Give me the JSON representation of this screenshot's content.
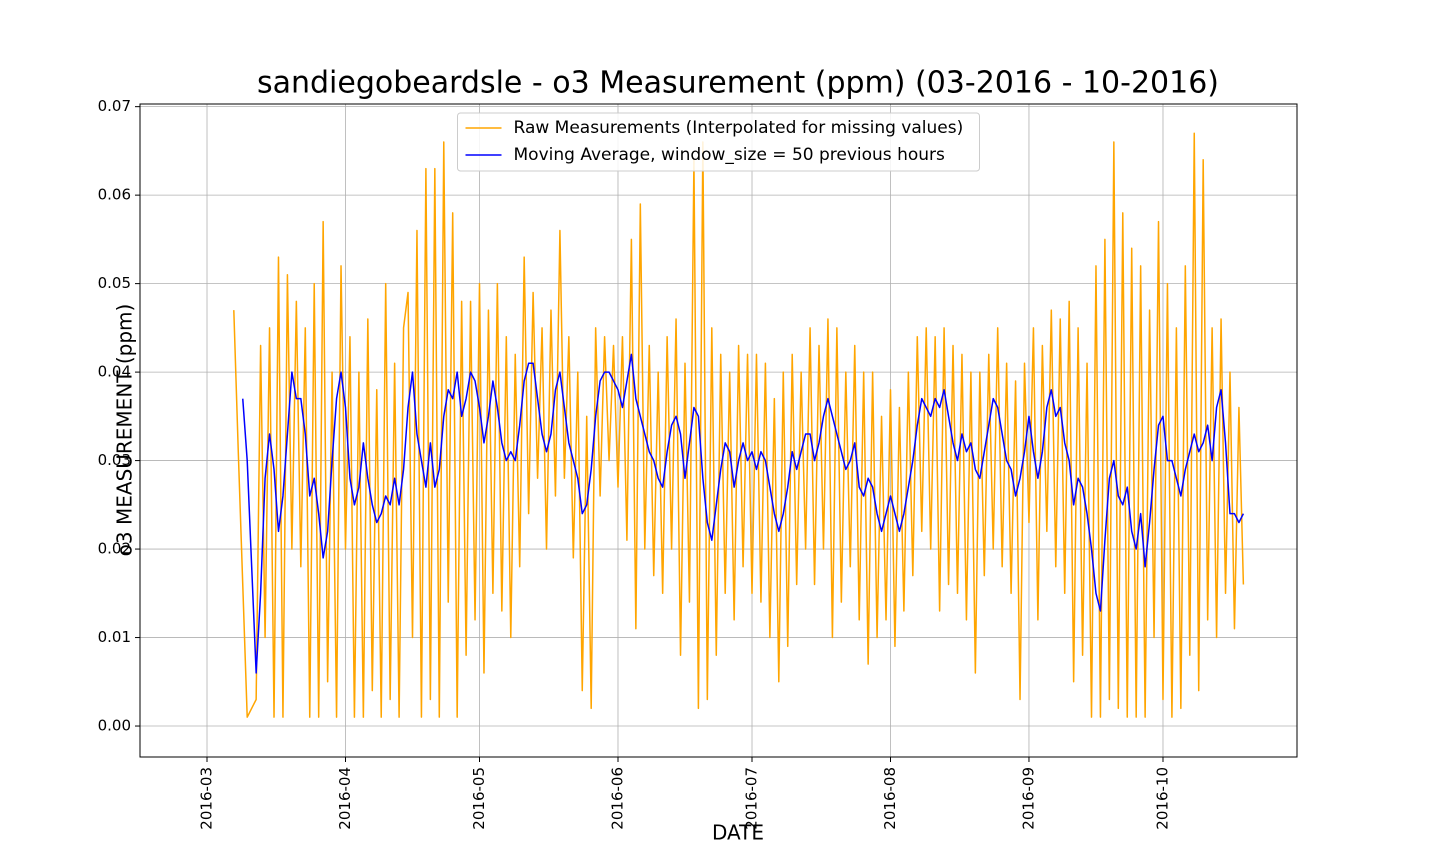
{
  "chart_data": {
    "type": "line",
    "title": "sandiegobeardsle - o3 Measurement (ppm) (03-2016 - 10-2016)",
    "xlabel": "DATE",
    "ylabel": "o3 MEASUREMENT (ppm)",
    "grid": true,
    "legend": "upper center",
    "xlim": [
      "2016-02-15",
      "2016-10-31"
    ],
    "xticks": [
      {
        "value": "2016-03-01",
        "label": "2016-03"
      },
      {
        "value": "2016-04-01",
        "label": "2016-04"
      },
      {
        "value": "2016-05-01",
        "label": "2016-05"
      },
      {
        "value": "2016-06-01",
        "label": "2016-06"
      },
      {
        "value": "2016-07-01",
        "label": "2016-07"
      },
      {
        "value": "2016-08-01",
        "label": "2016-08"
      },
      {
        "value": "2016-09-01",
        "label": "2016-09"
      },
      {
        "value": "2016-10-01",
        "label": "2016-10"
      }
    ],
    "ylim": [
      -0.0035,
      0.0703
    ],
    "yticks": [
      {
        "value": 0,
        "label": "0.00"
      },
      {
        "value": 0.01,
        "label": "0.01"
      },
      {
        "value": 0.02,
        "label": "0.02"
      },
      {
        "value": 0.03,
        "label": "0.03"
      },
      {
        "value": 0.04,
        "label": "0.04"
      },
      {
        "value": 0.05,
        "label": "0.05"
      },
      {
        "value": 0.06,
        "label": "0.06"
      },
      {
        "value": 0.07,
        "label": "0.07"
      }
    ],
    "x": [
      "2016-03-07",
      "2016-03-08",
      "2016-03-09",
      "2016-03-10",
      "2016-03-11",
      "2016-03-12",
      "2016-03-13",
      "2016-03-14",
      "2016-03-15",
      "2016-03-16",
      "2016-03-17",
      "2016-03-18",
      "2016-03-19",
      "2016-03-20",
      "2016-03-21",
      "2016-03-22",
      "2016-03-23",
      "2016-03-24",
      "2016-03-25",
      "2016-03-26",
      "2016-03-27",
      "2016-03-28",
      "2016-03-29",
      "2016-03-30",
      "2016-03-31",
      "2016-04-01",
      "2016-04-02",
      "2016-04-03",
      "2016-04-04",
      "2016-04-05",
      "2016-04-06",
      "2016-04-07",
      "2016-04-08",
      "2016-04-09",
      "2016-04-10",
      "2016-04-11",
      "2016-04-12",
      "2016-04-13",
      "2016-04-14",
      "2016-04-15",
      "2016-04-16",
      "2016-04-17",
      "2016-04-18",
      "2016-04-19",
      "2016-04-20",
      "2016-04-21",
      "2016-04-22",
      "2016-04-23",
      "2016-04-24",
      "2016-04-25",
      "2016-04-26",
      "2016-04-27",
      "2016-04-28",
      "2016-04-29",
      "2016-04-30",
      "2016-05-01",
      "2016-05-02",
      "2016-05-03",
      "2016-05-04",
      "2016-05-05",
      "2016-05-06",
      "2016-05-07",
      "2016-05-08",
      "2016-05-09",
      "2016-05-10",
      "2016-05-11",
      "2016-05-12",
      "2016-05-13",
      "2016-05-14",
      "2016-05-15",
      "2016-05-16",
      "2016-05-17",
      "2016-05-18",
      "2016-05-19",
      "2016-05-20",
      "2016-05-21",
      "2016-05-22",
      "2016-05-23",
      "2016-05-24",
      "2016-05-25",
      "2016-05-26",
      "2016-05-27",
      "2016-05-28",
      "2016-05-29",
      "2016-05-30",
      "2016-05-31",
      "2016-06-01",
      "2016-06-02",
      "2016-06-03",
      "2016-06-04",
      "2016-06-05",
      "2016-06-06",
      "2016-06-07",
      "2016-06-08",
      "2016-06-09",
      "2016-06-10",
      "2016-06-11",
      "2016-06-12",
      "2016-06-13",
      "2016-06-14",
      "2016-06-15",
      "2016-06-16",
      "2016-06-17",
      "2016-06-18",
      "2016-06-19",
      "2016-06-20",
      "2016-06-21",
      "2016-06-22",
      "2016-06-23",
      "2016-06-24",
      "2016-06-25",
      "2016-06-26",
      "2016-06-27",
      "2016-06-28",
      "2016-06-29",
      "2016-06-30",
      "2016-07-01",
      "2016-07-02",
      "2016-07-03",
      "2016-07-04",
      "2016-07-05",
      "2016-07-06",
      "2016-07-07",
      "2016-07-08",
      "2016-07-09",
      "2016-07-10",
      "2016-07-11",
      "2016-07-12",
      "2016-07-13",
      "2016-07-14",
      "2016-07-15",
      "2016-07-16",
      "2016-07-17",
      "2016-07-18",
      "2016-07-19",
      "2016-07-20",
      "2016-07-21",
      "2016-07-22",
      "2016-07-23",
      "2016-07-24",
      "2016-07-25",
      "2016-07-26",
      "2016-07-27",
      "2016-07-28",
      "2016-07-29",
      "2016-07-30",
      "2016-07-31",
      "2016-08-01",
      "2016-08-02",
      "2016-08-03",
      "2016-08-04",
      "2016-08-05",
      "2016-08-06",
      "2016-08-07",
      "2016-08-08",
      "2016-08-09",
      "2016-08-10",
      "2016-08-11",
      "2016-08-12",
      "2016-08-13",
      "2016-08-14",
      "2016-08-15",
      "2016-08-16",
      "2016-08-17",
      "2016-08-18",
      "2016-08-19",
      "2016-08-20",
      "2016-08-21",
      "2016-08-22",
      "2016-08-23",
      "2016-08-24",
      "2016-08-25",
      "2016-08-26",
      "2016-08-27",
      "2016-08-28",
      "2016-08-29",
      "2016-08-30",
      "2016-08-31",
      "2016-09-01",
      "2016-09-02",
      "2016-09-03",
      "2016-09-04",
      "2016-09-05",
      "2016-09-06",
      "2016-09-07",
      "2016-09-08",
      "2016-09-09",
      "2016-09-10",
      "2016-09-11",
      "2016-09-12",
      "2016-09-13",
      "2016-09-14",
      "2016-09-15",
      "2016-09-16",
      "2016-09-17",
      "2016-09-18",
      "2016-09-19",
      "2016-09-20",
      "2016-09-21",
      "2016-09-22",
      "2016-09-23",
      "2016-09-24",
      "2016-09-25",
      "2016-09-26",
      "2016-09-27",
      "2016-09-28",
      "2016-09-29",
      "2016-09-30",
      "2016-10-01",
      "2016-10-02",
      "2016-10-03",
      "2016-10-04",
      "2016-10-05",
      "2016-10-06",
      "2016-10-07",
      "2016-10-08",
      "2016-10-09",
      "2016-10-10",
      "2016-10-11",
      "2016-10-12",
      "2016-10-13",
      "2016-10-14",
      "2016-10-15",
      "2016-10-16",
      "2016-10-17",
      "2016-10-18",
      "2016-10-19"
    ],
    "series": [
      {
        "name": "Raw Measurements (Interpolated for missing values)",
        "color": "#ffa500",
        "values": [
          0.047,
          0.031,
          0.016,
          0.001,
          0.002,
          0.003,
          0.043,
          0.01,
          0.045,
          0.001,
          0.053,
          0.001,
          0.051,
          0.02,
          0.048,
          0.018,
          0.045,
          0.001,
          0.05,
          0.001,
          0.057,
          0.005,
          0.04,
          0.001,
          0.052,
          0.02,
          0.044,
          0.001,
          0.04,
          0.001,
          0.046,
          0.004,
          0.038,
          0.001,
          0.05,
          0.003,
          0.041,
          0.001,
          0.045,
          0.049,
          0.01,
          0.056,
          0.001,
          0.063,
          0.003,
          0.063,
          0.001,
          0.066,
          0.014,
          0.058,
          0.001,
          0.048,
          0.008,
          0.048,
          0.012,
          0.05,
          0.006,
          0.047,
          0.015,
          0.05,
          0.013,
          0.044,
          0.01,
          0.042,
          0.018,
          0.053,
          0.024,
          0.049,
          0.028,
          0.045,
          0.02,
          0.047,
          0.026,
          0.056,
          0.028,
          0.044,
          0.019,
          0.04,
          0.004,
          0.035,
          0.002,
          0.045,
          0.026,
          0.044,
          0.03,
          0.043,
          0.027,
          0.044,
          0.021,
          0.055,
          0.011,
          0.059,
          0.02,
          0.043,
          0.017,
          0.04,
          0.015,
          0.044,
          0.02,
          0.046,
          0.008,
          0.041,
          0.014,
          0.064,
          0.002,
          0.066,
          0.003,
          0.045,
          0.008,
          0.042,
          0.015,
          0.04,
          0.012,
          0.043,
          0.018,
          0.042,
          0.015,
          0.042,
          0.014,
          0.041,
          0.01,
          0.037,
          0.005,
          0.04,
          0.009,
          0.042,
          0.016,
          0.04,
          0.02,
          0.045,
          0.016,
          0.043,
          0.02,
          0.046,
          0.01,
          0.045,
          0.014,
          0.04,
          0.018,
          0.043,
          0.012,
          0.04,
          0.007,
          0.04,
          0.01,
          0.035,
          0.012,
          0.038,
          0.009,
          0.036,
          0.013,
          0.04,
          0.017,
          0.044,
          0.022,
          0.045,
          0.02,
          0.044,
          0.013,
          0.045,
          0.016,
          0.043,
          0.015,
          0.042,
          0.012,
          0.04,
          0.006,
          0.04,
          0.017,
          0.042,
          0.02,
          0.045,
          0.018,
          0.041,
          0.015,
          0.039,
          0.003,
          0.041,
          0.023,
          0.045,
          0.012,
          0.043,
          0.022,
          0.047,
          0.018,
          0.046,
          0.015,
          0.048,
          0.005,
          0.045,
          0.008,
          0.041,
          0.001,
          0.052,
          0.001,
          0.055,
          0.003,
          0.066,
          0.002,
          0.058,
          0.001,
          0.054,
          0.001,
          0.052,
          0.001,
          0.047,
          0.01,
          0.057,
          0.003,
          0.05,
          0.001,
          0.045,
          0.002,
          0.052,
          0.008,
          0.067,
          0.004,
          0.064,
          0.012,
          0.045,
          0.01,
          0.046,
          0.015,
          0.04,
          0.011,
          0.036,
          0.016
        ]
      },
      {
        "name": "Moving Average, window_size = 50 previous hours",
        "color": "#0000ff",
        "values": [
          null,
          null,
          0.037,
          0.03,
          0.018,
          0.006,
          0.015,
          0.028,
          0.033,
          0.029,
          0.022,
          0.026,
          0.033,
          0.04,
          0.037,
          0.037,
          0.033,
          0.026,
          0.028,
          0.024,
          0.019,
          0.022,
          0.03,
          0.037,
          0.04,
          0.036,
          0.028,
          0.025,
          0.027,
          0.032,
          0.028,
          0.025,
          0.023,
          0.024,
          0.026,
          0.025,
          0.028,
          0.025,
          0.029,
          0.036,
          0.04,
          0.033,
          0.03,
          0.027,
          0.032,
          0.027,
          0.029,
          0.035,
          0.038,
          0.037,
          0.04,
          0.035,
          0.037,
          0.04,
          0.039,
          0.036,
          0.032,
          0.035,
          0.039,
          0.036,
          0.032,
          0.03,
          0.031,
          0.03,
          0.034,
          0.039,
          0.041,
          0.041,
          0.037,
          0.033,
          0.031,
          0.033,
          0.038,
          0.04,
          0.036,
          0.032,
          0.03,
          0.028,
          0.024,
          0.025,
          0.029,
          0.035,
          0.039,
          0.04,
          0.04,
          0.039,
          0.038,
          0.036,
          0.039,
          0.042,
          0.037,
          0.035,
          0.033,
          0.031,
          0.03,
          0.028,
          0.027,
          0.031,
          0.034,
          0.035,
          0.033,
          0.028,
          0.032,
          0.036,
          0.035,
          0.028,
          0.023,
          0.021,
          0.025,
          0.029,
          0.032,
          0.031,
          0.027,
          0.03,
          0.032,
          0.03,
          0.031,
          0.029,
          0.031,
          0.03,
          0.027,
          0.024,
          0.022,
          0.024,
          0.027,
          0.031,
          0.029,
          0.031,
          0.033,
          0.033,
          0.03,
          0.032,
          0.035,
          0.037,
          0.035,
          0.033,
          0.031,
          0.029,
          0.03,
          0.032,
          0.027,
          0.026,
          0.028,
          0.027,
          0.024,
          0.022,
          0.024,
          0.026,
          0.024,
          0.022,
          0.024,
          0.027,
          0.03,
          0.034,
          0.037,
          0.036,
          0.035,
          0.037,
          0.036,
          0.038,
          0.035,
          0.032,
          0.03,
          0.033,
          0.031,
          0.032,
          0.029,
          0.028,
          0.031,
          0.034,
          0.037,
          0.036,
          0.033,
          0.03,
          0.029,
          0.026,
          0.028,
          0.031,
          0.035,
          0.031,
          0.028,
          0.031,
          0.036,
          0.038,
          0.035,
          0.036,
          0.032,
          0.03,
          0.025,
          0.028,
          0.027,
          0.024,
          0.02,
          0.015,
          0.013,
          0.021,
          0.028,
          0.03,
          0.026,
          0.025,
          0.027,
          0.022,
          0.02,
          0.024,
          0.018,
          0.023,
          0.029,
          0.034,
          0.035,
          0.03,
          0.03,
          0.028,
          0.026,
          0.029,
          0.031,
          0.033,
          0.031,
          0.032,
          0.034,
          0.03,
          0.036,
          0.038,
          0.032,
          0.024,
          0.024,
          0.023,
          0.024
        ]
      }
    ]
  }
}
